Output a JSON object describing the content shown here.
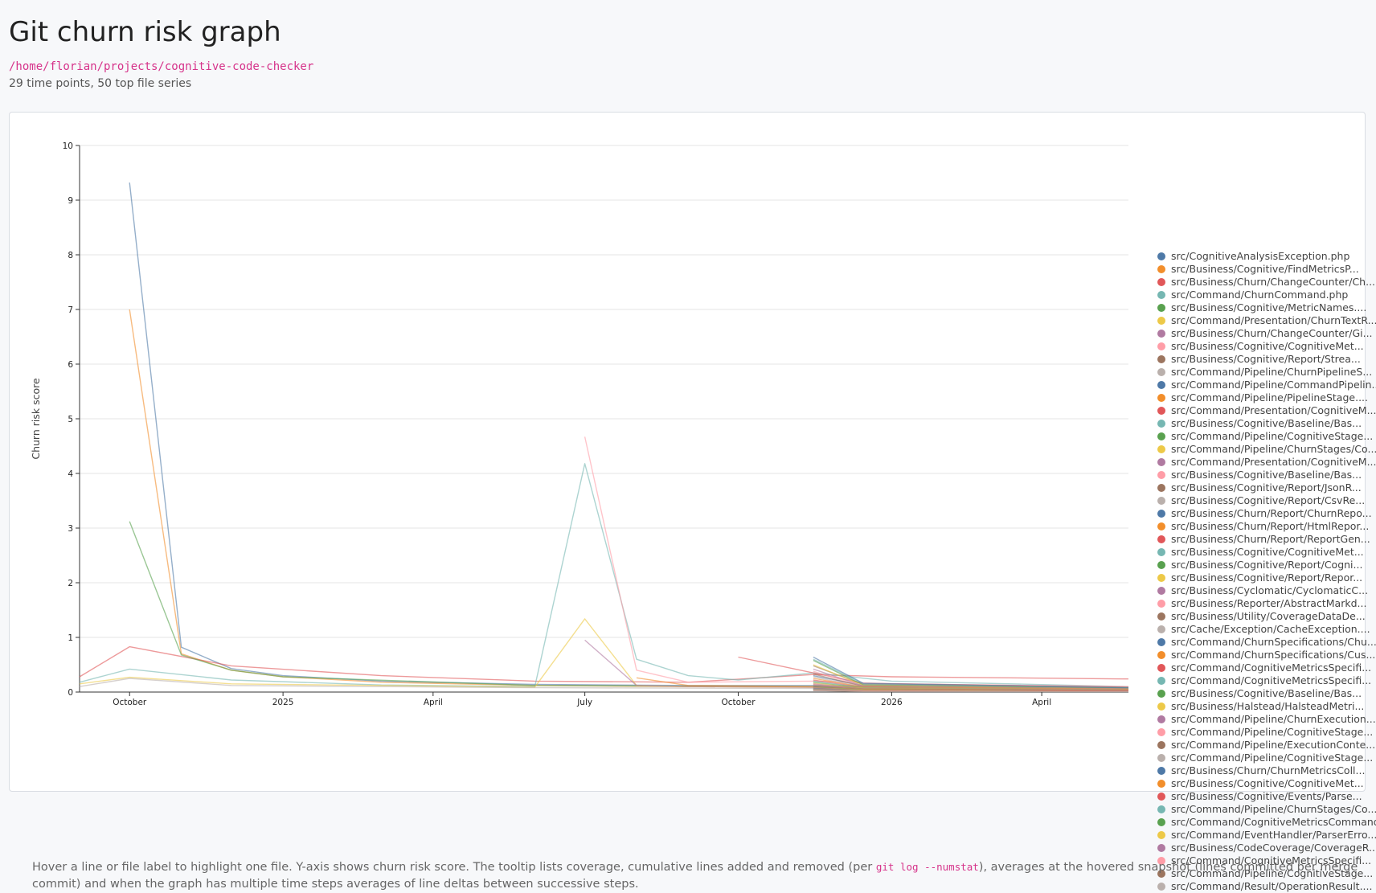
{
  "page": {
    "title": "Git churn risk graph",
    "repo_path": "/home/florian/projects/cognitive-code-checker",
    "summary": "29 time points, 50 top file series",
    "note_pre": "Hover a line or file label to highlight one file. Y-axis shows churn risk score. The tooltip lists coverage, cumulative lines added and removed (per ",
    "note_code": "git log --numstat",
    "note_post": "), averages at the hovered snapshot (lines committed per merge commit) and when the graph has multiple time steps averages of line deltas between successive steps."
  },
  "colors": [
    "#4e79a7",
    "#f28e2b",
    "#e15759",
    "#76b7b2",
    "#59a14f",
    "#edc948",
    "#b07aa1",
    "#ff9da7",
    "#9c755f",
    "#bab0ac"
  ],
  "chart_data": {
    "type": "line",
    "xlabel": "",
    "ylabel": "Churn risk score",
    "ylim": [
      0,
      10
    ],
    "y_ticks": [
      0,
      1,
      2,
      3,
      4,
      5,
      6,
      7,
      8,
      9,
      10
    ],
    "x_ticks": [
      {
        "date": "2024-10-01",
        "label": "October"
      },
      {
        "date": "2025-01-01",
        "label": "2025"
      },
      {
        "date": "2025-04-01",
        "label": "April"
      },
      {
        "date": "2025-07-01",
        "label": "July"
      },
      {
        "date": "2025-10-01",
        "label": "October"
      },
      {
        "date": "2026-01-01",
        "label": "2026"
      },
      {
        "date": "2026-04-01",
        "label": "April"
      }
    ],
    "xlim": [
      "2024-09-01",
      "2026-05-23"
    ],
    "grid": true,
    "legend": "right",
    "series": [
      {
        "name": "src/CognitiveAnalysisException.php",
        "points": [
          [
            "2024-10-01",
            9.32
          ],
          [
            "2024-11-01",
            0.82
          ],
          [
            "2024-12-01",
            0.43
          ],
          [
            "2025-01-01",
            0.3
          ],
          [
            "2025-03-01",
            0.2
          ],
          [
            "2025-06-01",
            0.14
          ],
          [
            "2025-09-01",
            0.12
          ],
          [
            "2025-11-15",
            0.12
          ],
          [
            "2026-01-01",
            0.1
          ],
          [
            "2026-05-23",
            0.08
          ]
        ]
      },
      {
        "name": "src/Business/Cognitive/FindMetricsP...",
        "points": [
          [
            "2024-10-01",
            7.0
          ],
          [
            "2024-11-01",
            0.7
          ],
          [
            "2024-12-01",
            0.4
          ],
          [
            "2025-01-01",
            0.28
          ],
          [
            "2025-03-01",
            0.18
          ],
          [
            "2025-06-01",
            0.12
          ],
          [
            "2025-09-01",
            0.1
          ],
          [
            "2026-01-01",
            0.09
          ],
          [
            "2026-05-23",
            0.07
          ]
        ]
      },
      {
        "name": "src/Business/Churn/ChangeCounter/Ch...",
        "points": [
          [
            "2024-09-01",
            0.28
          ],
          [
            "2024-10-01",
            0.83
          ],
          [
            "2024-12-01",
            0.48
          ],
          [
            "2025-03-01",
            0.3
          ],
          [
            "2025-06-01",
            0.2
          ],
          [
            "2025-09-01",
            0.18
          ],
          [
            "2025-11-15",
            0.32
          ],
          [
            "2026-01-01",
            0.28
          ],
          [
            "2026-05-23",
            0.24
          ]
        ]
      },
      {
        "name": "src/Command/ChurnCommand.php",
        "points": [
          [
            "2024-09-01",
            0.18
          ],
          [
            "2024-10-01",
            0.42
          ],
          [
            "2024-12-01",
            0.22
          ],
          [
            "2025-03-01",
            0.13
          ],
          [
            "2025-06-01",
            0.1
          ],
          [
            "2025-07-01",
            4.18
          ],
          [
            "2025-08-01",
            0.6
          ],
          [
            "2025-09-01",
            0.3
          ],
          [
            "2025-10-01",
            0.22
          ],
          [
            "2025-11-15",
            0.35
          ],
          [
            "2026-01-01",
            0.2
          ],
          [
            "2026-05-23",
            0.1
          ]
        ]
      },
      {
        "name": "src/Business/Cognitive/MetricNames....",
        "points": [
          [
            "2024-10-01",
            3.12
          ],
          [
            "2024-11-01",
            0.68
          ],
          [
            "2024-12-01",
            0.4
          ],
          [
            "2025-01-01",
            0.28
          ],
          [
            "2025-06-01",
            0.12
          ],
          [
            "2026-05-23",
            0.07
          ]
        ]
      },
      {
        "name": "src/Command/Presentation/ChurnTextR...",
        "points": [
          [
            "2024-09-01",
            0.15
          ],
          [
            "2024-10-01",
            0.27
          ],
          [
            "2024-12-01",
            0.15
          ],
          [
            "2025-06-01",
            0.09
          ],
          [
            "2025-07-01",
            1.34
          ],
          [
            "2025-08-01",
            0.12
          ],
          [
            "2025-09-01",
            0.1
          ],
          [
            "2026-05-23",
            0.06
          ]
        ]
      },
      {
        "name": "src/Business/Churn/ChangeCounter/Gi...",
        "points": [
          [
            "2025-07-01",
            0.95
          ],
          [
            "2025-08-01",
            0.12
          ],
          [
            "2025-09-01",
            0.1
          ],
          [
            "2026-05-23",
            0.06
          ]
        ]
      },
      {
        "name": "src/Business/Cognitive/CognitiveMet...",
        "points": [
          [
            "2025-07-01",
            4.67
          ],
          [
            "2025-08-01",
            0.4
          ],
          [
            "2025-09-01",
            0.18
          ],
          [
            "2025-11-15",
            0.2
          ],
          [
            "2026-01-01",
            0.15
          ],
          [
            "2026-05-23",
            0.1
          ]
        ]
      },
      {
        "name": "src/Business/Cognitive/Report/Strea...",
        "points": [
          [
            "2025-11-15",
            0.48
          ],
          [
            "2025-12-15",
            0.14
          ],
          [
            "2026-05-23",
            0.08
          ]
        ]
      },
      {
        "name": "src/Command/Pipeline/ChurnPipelineS...",
        "points": [
          [
            "2024-09-01",
            0.1
          ],
          [
            "2024-10-01",
            0.25
          ],
          [
            "2024-12-01",
            0.12
          ],
          [
            "2025-06-01",
            0.08
          ],
          [
            "2026-05-23",
            0.05
          ]
        ]
      },
      {
        "name": "src/Command/Pipeline/CommandPipelin...",
        "points": [
          [
            "2025-11-15",
            0.3
          ],
          [
            "2025-12-15",
            0.12
          ],
          [
            "2026-05-23",
            0.06
          ]
        ]
      },
      {
        "name": "src/Command/Pipeline/PipelineStage....",
        "points": [
          [
            "2025-08-01",
            0.26
          ],
          [
            "2025-09-01",
            0.12
          ],
          [
            "2026-05-23",
            0.05
          ]
        ]
      },
      {
        "name": "src/Command/Presentation/CognitiveM...",
        "points": [
          [
            "2025-10-01",
            0.64
          ],
          [
            "2025-11-15",
            0.35
          ],
          [
            "2025-12-15",
            0.16
          ],
          [
            "2026-05-23",
            0.09
          ]
        ]
      },
      {
        "name": "src/Business/Cognitive/Baseline/Bas...",
        "points": [
          [
            "2025-11-15",
            0.6
          ],
          [
            "2025-12-15",
            0.15
          ],
          [
            "2026-05-23",
            0.08
          ]
        ]
      },
      {
        "name": "src/Command/Pipeline/CognitiveStage...",
        "points": [
          [
            "2025-11-15",
            0.58
          ],
          [
            "2025-12-15",
            0.13
          ],
          [
            "2026-05-23",
            0.07
          ]
        ]
      },
      {
        "name": "src/Command/Pipeline/ChurnStages/Co...",
        "points": [
          [
            "2025-11-15",
            0.5
          ],
          [
            "2025-12-15",
            0.12
          ],
          [
            "2026-05-23",
            0.06
          ]
        ]
      },
      {
        "name": "src/Command/Presentation/CognitiveM...",
        "points": [
          [
            "2025-11-15",
            0.42
          ],
          [
            "2025-12-15",
            0.11
          ],
          [
            "2026-05-23",
            0.06
          ]
        ]
      },
      {
        "name": "src/Business/Cognitive/Baseline/Bas...",
        "points": [
          [
            "2025-11-15",
            0.38
          ],
          [
            "2025-12-15",
            0.1
          ],
          [
            "2026-05-23",
            0.05
          ]
        ]
      },
      {
        "name": "src/Business/Cognitive/Report/JsonR...",
        "points": [
          [
            "2025-11-15",
            0.33
          ],
          [
            "2025-12-15",
            0.1
          ],
          [
            "2026-05-23",
            0.05
          ]
        ]
      },
      {
        "name": "src/Business/Cognitive/Report/CsvRe...",
        "points": [
          [
            "2025-11-15",
            0.28
          ],
          [
            "2025-12-15",
            0.09
          ],
          [
            "2026-05-23",
            0.05
          ]
        ]
      },
      {
        "name": "src/Business/Churn/Report/ChurnRepo...",
        "points": [
          [
            "2025-11-15",
            0.64
          ],
          [
            "2025-12-15",
            0.16
          ],
          [
            "2026-05-23",
            0.08
          ]
        ]
      },
      {
        "name": "src/Business/Churn/Report/HtmlRepor...",
        "points": [
          [
            "2025-11-15",
            0.25
          ],
          [
            "2025-12-15",
            0.09
          ],
          [
            "2026-05-23",
            0.05
          ]
        ]
      },
      {
        "name": "src/Business/Churn/Report/ReportGen...",
        "points": [
          [
            "2025-11-15",
            0.22
          ],
          [
            "2025-12-15",
            0.08
          ],
          [
            "2026-05-23",
            0.04
          ]
        ]
      },
      {
        "name": "src/Business/Cognitive/CognitiveMet...",
        "points": [
          [
            "2025-11-15",
            0.2
          ],
          [
            "2025-12-15",
            0.08
          ],
          [
            "2026-05-23",
            0.04
          ]
        ]
      },
      {
        "name": "src/Business/Cognitive/Report/Cogni...",
        "points": [
          [
            "2025-11-15",
            0.18
          ],
          [
            "2025-12-15",
            0.07
          ],
          [
            "2026-05-23",
            0.04
          ]
        ]
      },
      {
        "name": "src/Business/Cognitive/Report/Repor...",
        "points": [
          [
            "2025-11-15",
            0.16
          ],
          [
            "2025-12-15",
            0.07
          ],
          [
            "2026-05-23",
            0.04
          ]
        ]
      },
      {
        "name": "src/Business/Cyclomatic/CyclomaticC...",
        "points": [
          [
            "2025-11-15",
            0.15
          ],
          [
            "2025-12-15",
            0.06
          ],
          [
            "2026-05-23",
            0.04
          ]
        ]
      },
      {
        "name": "src/Business/Reporter/AbstractMarkd...",
        "points": [
          [
            "2025-11-15",
            0.14
          ],
          [
            "2025-12-15",
            0.06
          ],
          [
            "2026-05-23",
            0.03
          ]
        ]
      },
      {
        "name": "src/Business/Utility/CoverageDataDe...",
        "points": [
          [
            "2025-11-15",
            0.13
          ],
          [
            "2025-12-15",
            0.06
          ],
          [
            "2026-05-23",
            0.03
          ]
        ]
      },
      {
        "name": "src/Cache/Exception/CacheException....",
        "points": [
          [
            "2025-11-15",
            0.12
          ],
          [
            "2025-12-15",
            0.05
          ],
          [
            "2026-05-23",
            0.03
          ]
        ]
      },
      {
        "name": "src/Command/ChurnSpecifications/Chu...",
        "points": [
          [
            "2025-11-15",
            0.11
          ],
          [
            "2025-12-15",
            0.05
          ],
          [
            "2026-05-23",
            0.03
          ]
        ]
      },
      {
        "name": "src/Command/ChurnSpecifications/Cus...",
        "points": [
          [
            "2025-11-15",
            0.1
          ],
          [
            "2025-12-15",
            0.05
          ],
          [
            "2026-05-23",
            0.03
          ]
        ]
      },
      {
        "name": "src/Command/CognitiveMetricsSpecifi...",
        "points": [
          [
            "2025-11-15",
            0.1
          ],
          [
            "2025-12-15",
            0.04
          ],
          [
            "2026-05-23",
            0.03
          ]
        ]
      },
      {
        "name": "src/Command/CognitiveMetricsSpecifi...",
        "points": [
          [
            "2025-11-15",
            0.09
          ],
          [
            "2025-12-15",
            0.04
          ],
          [
            "2026-05-23",
            0.02
          ]
        ]
      },
      {
        "name": "src/Business/Cognitive/Baseline/Bas...",
        "points": [
          [
            "2025-11-15",
            0.09
          ],
          [
            "2025-12-15",
            0.04
          ],
          [
            "2026-05-23",
            0.02
          ]
        ]
      },
      {
        "name": "src/Business/Halstead/HalsteadMetri...",
        "points": [
          [
            "2025-11-15",
            0.08
          ],
          [
            "2025-12-15",
            0.04
          ],
          [
            "2026-05-23",
            0.02
          ]
        ]
      },
      {
        "name": "src/Command/Pipeline/ChurnExecution...",
        "points": [
          [
            "2025-11-15",
            0.08
          ],
          [
            "2025-12-15",
            0.03
          ],
          [
            "2026-05-23",
            0.02
          ]
        ]
      },
      {
        "name": "src/Command/Pipeline/CognitiveStage...",
        "points": [
          [
            "2025-11-15",
            0.07
          ],
          [
            "2025-12-15",
            0.03
          ],
          [
            "2026-05-23",
            0.02
          ]
        ]
      },
      {
        "name": "src/Command/Pipeline/ExecutionConte...",
        "points": [
          [
            "2025-11-15",
            0.07
          ],
          [
            "2025-12-15",
            0.03
          ],
          [
            "2026-05-23",
            0.02
          ]
        ]
      },
      {
        "name": "src/Command/Pipeline/CognitiveStage...",
        "points": [
          [
            "2025-11-15",
            0.06
          ],
          [
            "2025-12-15",
            0.03
          ],
          [
            "2026-05-23",
            0.02
          ]
        ]
      },
      {
        "name": "src/Business/Churn/ChurnMetricsColl...",
        "points": [
          [
            "2025-11-15",
            0.06
          ],
          [
            "2025-12-15",
            0.03
          ],
          [
            "2026-05-23",
            0.02
          ]
        ]
      },
      {
        "name": "src/Business/Cognitive/CognitiveMet...",
        "points": [
          [
            "2025-11-15",
            0.05
          ],
          [
            "2025-12-15",
            0.03
          ],
          [
            "2026-05-23",
            0.02
          ]
        ]
      },
      {
        "name": "src/Business/Cognitive/Events/Parse...",
        "points": [
          [
            "2025-11-15",
            0.05
          ],
          [
            "2025-12-15",
            0.02
          ],
          [
            "2026-05-23",
            0.02
          ]
        ]
      },
      {
        "name": "src/Command/Pipeline/ChurnStages/Co...",
        "points": [
          [
            "2025-11-15",
            0.05
          ],
          [
            "2025-12-15",
            0.02
          ],
          [
            "2026-05-23",
            0.01
          ]
        ]
      },
      {
        "name": "src/Command/CognitiveMetricsCommand...",
        "points": [
          [
            "2025-11-15",
            0.04
          ],
          [
            "2025-12-15",
            0.02
          ],
          [
            "2026-05-23",
            0.01
          ]
        ]
      },
      {
        "name": "src/Command/EventHandler/ParserErro...",
        "points": [
          [
            "2025-11-15",
            0.04
          ],
          [
            "2025-12-15",
            0.02
          ],
          [
            "2026-05-23",
            0.01
          ]
        ]
      },
      {
        "name": "src/Business/CodeCoverage/CoverageR...",
        "points": [
          [
            "2025-11-15",
            0.04
          ],
          [
            "2025-12-15",
            0.02
          ],
          [
            "2026-05-23",
            0.01
          ]
        ]
      },
      {
        "name": "src/Command/CognitiveMetricsSpecifi...",
        "points": [
          [
            "2025-11-15",
            0.03
          ],
          [
            "2025-12-15",
            0.02
          ],
          [
            "2026-05-23",
            0.01
          ]
        ]
      },
      {
        "name": "src/Command/Pipeline/CognitiveStage...",
        "points": [
          [
            "2025-11-15",
            0.03
          ],
          [
            "2025-12-15",
            0.01
          ],
          [
            "2026-05-23",
            0.01
          ]
        ]
      },
      {
        "name": "src/Command/Result/OperationResult....",
        "points": [
          [
            "2025-11-15",
            0.03
          ],
          [
            "2025-12-15",
            0.01
          ],
          [
            "2026-05-23",
            0.01
          ]
        ]
      }
    ]
  }
}
